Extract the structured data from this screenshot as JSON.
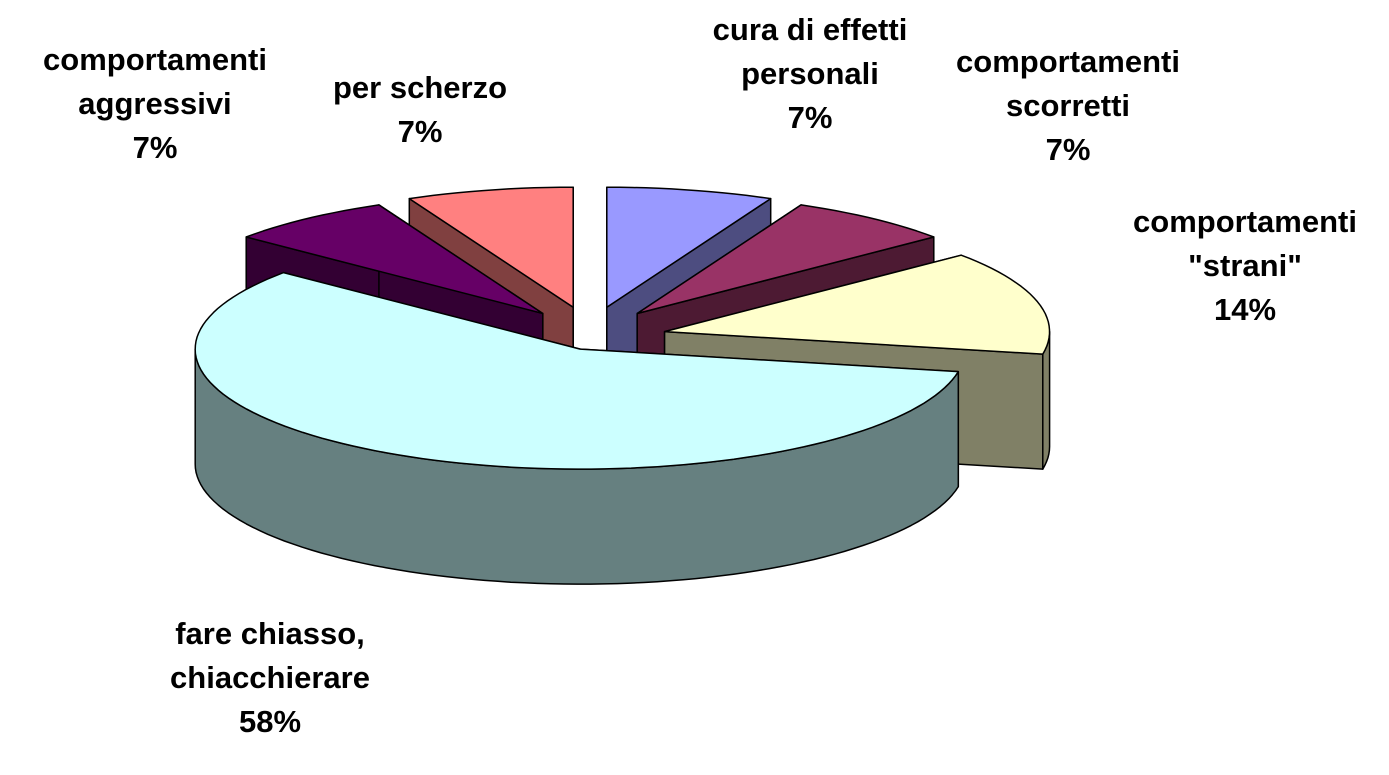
{
  "chart_data": {
    "type": "pie",
    "categories": [
      "cura di effetti\npersonali",
      "comportamenti\nscorretti",
      "comportamenti\n\"strani\"",
      "fare chiasso,\nchiacchierare",
      "comportamenti\naggressivi",
      "per scherzo"
    ],
    "values": [
      7,
      7,
      14,
      58,
      7,
      7
    ],
    "value_labels": [
      "7%",
      "7%",
      "14%",
      "58%",
      "7%",
      "7%"
    ],
    "colors": [
      "#9999ff",
      "#993366",
      "#ffffcc",
      "#ccffff",
      "#660066",
      "#ff8080"
    ]
  }
}
